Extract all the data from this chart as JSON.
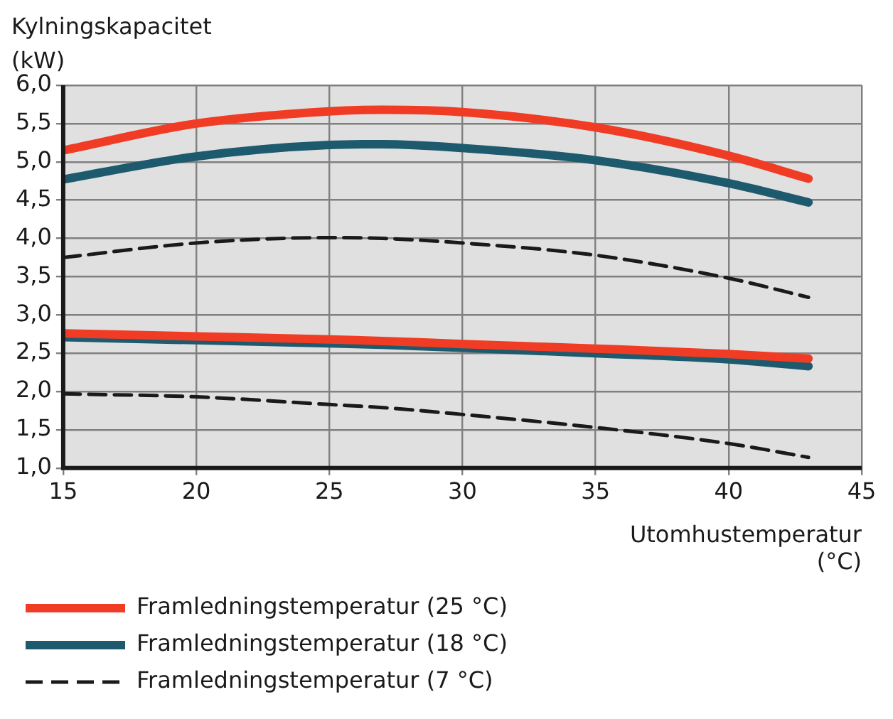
{
  "chart_data": {
    "type": "line",
    "xlabel": "Utomhustemperatur (°C)",
    "ylabel": "Kylningskapacitet (kW)",
    "xlim": [
      15,
      45
    ],
    "xticks": [
      15,
      20,
      25,
      30,
      35,
      40,
      45
    ],
    "ylim": [
      1,
      6
    ],
    "yticks": [
      {
        "value": 1,
        "label": "1,0"
      },
      {
        "value": 1.5,
        "label": "1,5"
      },
      {
        "value": 2,
        "label": "2,0"
      },
      {
        "value": 2.5,
        "label": "2,5"
      },
      {
        "value": 3,
        "label": "3,0"
      },
      {
        "value": 3.5,
        "label": "3,5"
      },
      {
        "value": 4,
        "label": "4,0"
      },
      {
        "value": 4.5,
        "label": "4,5"
      },
      {
        "value": 5,
        "label": "5,0"
      },
      {
        "value": 5.5,
        "label": "5,5"
      },
      {
        "value": 6,
        "label": "6,0"
      }
    ],
    "grid": true,
    "legend": "bottom",
    "marker": "none",
    "x": [
      15,
      20,
      25,
      27,
      30,
      35,
      40,
      43
    ],
    "series": [
      {
        "name": "Framledningstemperatur (25 °C)",
        "color": "#f03c24",
        "line_style": "solid",
        "values": [
          5.15,
          5.5,
          5.66,
          5.68,
          5.65,
          5.45,
          5.08,
          4.78
        ]
      },
      {
        "name": "Framledningstemperatur (18 °C)",
        "color": "#1e5a6e",
        "line_style": "solid",
        "values": [
          4.77,
          5.07,
          5.22,
          5.23,
          5.18,
          5.02,
          4.72,
          4.47
        ]
      },
      {
        "name": "Framledningstemperatur (7 °C)",
        "color": "#1a1a1a",
        "line_style": "dashed",
        "values": [
          3.75,
          3.94,
          4.01,
          4,
          3.94,
          3.78,
          3.48,
          3.23
        ]
      },
      {
        "color": "#f03c24",
        "line_style": "solid",
        "values": [
          2.76,
          2.72,
          2.68,
          2.66,
          2.62,
          2.56,
          2.49,
          2.43
        ]
      },
      {
        "color": "#1e5a6e",
        "line_style": "solid",
        "values": [
          2.71,
          2.67,
          2.63,
          2.61,
          2.57,
          2.5,
          2.42,
          2.33
        ]
      },
      {
        "color": "#1a1a1a",
        "line_style": "dashed",
        "values": [
          1.97,
          1.93,
          1.83,
          1.79,
          1.7,
          1.53,
          1.32,
          1.14
        ]
      }
    ]
  }
}
